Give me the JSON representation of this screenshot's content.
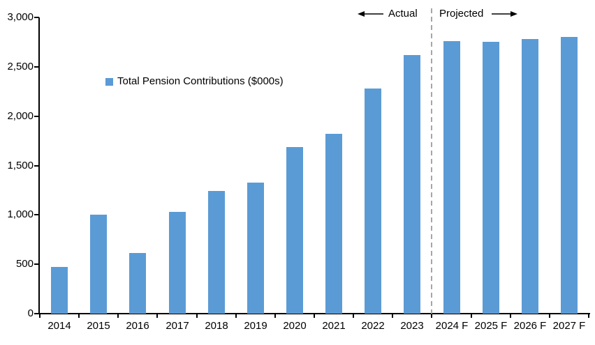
{
  "chart_data": {
    "type": "bar",
    "title": "",
    "legend": "Total Pension Contributions ($000s)",
    "categories": [
      "2014",
      "2015",
      "2016",
      "2017",
      "2018",
      "2019",
      "2020",
      "2021",
      "2022",
      "2023",
      "2024 F",
      "2025 F",
      "2026 F",
      "2027 F"
    ],
    "values": [
      470,
      1000,
      615,
      1030,
      1240,
      1330,
      1690,
      1820,
      2280,
      2620,
      2760,
      2750,
      2780,
      2800
    ],
    "ylim": [
      0,
      3000
    ],
    "ytick_interval": 500,
    "ytick_labels": [
      "0",
      "500",
      "1,000",
      "1,500",
      "2,000",
      "2,500",
      "3,000"
    ],
    "xlabel": "",
    "ylabel": "",
    "grid": false,
    "legend_position": "inside-upper-left",
    "divider": {
      "after_category": "2023",
      "left_label": "Actual",
      "right_label": "Projected"
    }
  },
  "colors": {
    "bar": "#5B9BD5",
    "axis": "#000000",
    "divider_line": "#A6A6A6",
    "background": "#FFFFFF",
    "text": "#000000"
  }
}
